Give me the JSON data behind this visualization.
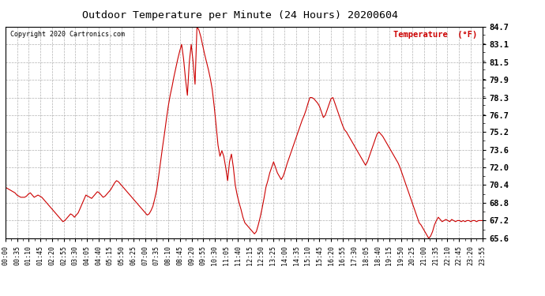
{
  "title": "Outdoor Temperature per Minute (24 Hours) 20200604",
  "copyright": "Copyright 2020 Cartronics.com",
  "legend_label": "Temperature  (°F)",
  "line_color": "#cc0000",
  "bg_color": "#ffffff",
  "grid_color": "#bbbbbb",
  "yticks": [
    65.6,
    67.2,
    68.8,
    70.4,
    72.0,
    73.6,
    75.2,
    76.7,
    78.3,
    79.9,
    81.5,
    83.1,
    84.7
  ],
  "ymin": 65.6,
  "ymax": 84.7,
  "xtick_labels": [
    "00:00",
    "00:35",
    "01:10",
    "01:45",
    "02:20",
    "02:55",
    "03:30",
    "04:05",
    "04:40",
    "05:15",
    "05:50",
    "06:25",
    "07:00",
    "07:35",
    "08:10",
    "08:45",
    "09:20",
    "09:55",
    "10:30",
    "11:05",
    "11:40",
    "12:15",
    "12:50",
    "13:25",
    "14:00",
    "14:35",
    "15:10",
    "15:45",
    "16:20",
    "16:55",
    "17:30",
    "18:05",
    "18:40",
    "19:15",
    "19:50",
    "20:25",
    "21:00",
    "21:35",
    "22:10",
    "22:45",
    "23:20",
    "23:55"
  ],
  "temperature_data": [
    70.2,
    70.1,
    70.0,
    69.9,
    69.8,
    69.7,
    69.5,
    69.4,
    69.3,
    69.3,
    69.3,
    69.4,
    69.6,
    69.7,
    69.5,
    69.3,
    69.4,
    69.5,
    69.4,
    69.3,
    69.1,
    68.9,
    68.7,
    68.5,
    68.3,
    68.1,
    67.9,
    67.7,
    67.5,
    67.3,
    67.1,
    67.2,
    67.4,
    67.6,
    67.8,
    67.7,
    67.5,
    67.7,
    67.9,
    68.3,
    68.7,
    69.1,
    69.5,
    69.4,
    69.3,
    69.2,
    69.4,
    69.6,
    69.8,
    69.7,
    69.5,
    69.3,
    69.4,
    69.6,
    69.8,
    70.0,
    70.3,
    70.6,
    70.8,
    70.7,
    70.5,
    70.3,
    70.1,
    69.9,
    69.7,
    69.5,
    69.3,
    69.1,
    68.9,
    68.7,
    68.5,
    68.3,
    68.1,
    67.9,
    67.7,
    67.8,
    68.1,
    68.5,
    69.2,
    70.0,
    71.2,
    72.5,
    73.8,
    75.0,
    76.3,
    77.5,
    78.5,
    79.3,
    80.2,
    81.0,
    81.8,
    82.5,
    83.1,
    81.8,
    80.0,
    78.5,
    81.5,
    83.1,
    81.5,
    79.5,
    84.7,
    84.4,
    83.8,
    83.0,
    82.2,
    81.5,
    80.8,
    80.0,
    79.0,
    77.5,
    75.8,
    74.0,
    73.0,
    73.5,
    73.0,
    72.0,
    70.8,
    72.5,
    73.2,
    72.0,
    70.4,
    69.5,
    68.8,
    68.2,
    67.5,
    67.0,
    66.8,
    66.6,
    66.4,
    66.2,
    66.0,
    66.2,
    66.8,
    67.5,
    68.3,
    69.2,
    70.2,
    70.8,
    71.5,
    72.0,
    72.5,
    72.0,
    71.5,
    71.2,
    70.9,
    71.2,
    71.7,
    72.3,
    72.8,
    73.3,
    73.8,
    74.3,
    74.8,
    75.3,
    75.8,
    76.3,
    76.7,
    77.2,
    77.8,
    78.3,
    78.3,
    78.2,
    78.0,
    77.8,
    77.5,
    77.0,
    76.5,
    76.7,
    77.2,
    77.7,
    78.2,
    78.3,
    77.8,
    77.3,
    76.8,
    76.3,
    75.8,
    75.4,
    75.2,
    74.9,
    74.6,
    74.3,
    74.0,
    73.7,
    73.4,
    73.1,
    72.8,
    72.5,
    72.2,
    72.5,
    73.0,
    73.5,
    74.0,
    74.5,
    75.0,
    75.2,
    75.0,
    74.8,
    74.5,
    74.2,
    73.9,
    73.6,
    73.3,
    73.0,
    72.7,
    72.4,
    72.0,
    71.5,
    71.0,
    70.5,
    70.0,
    69.5,
    69.0,
    68.5,
    68.0,
    67.5,
    67.0,
    66.8,
    66.5,
    66.2,
    65.9,
    65.6,
    65.8,
    66.2,
    66.8,
    67.2,
    67.5,
    67.3,
    67.1,
    67.2,
    67.3,
    67.2,
    67.1,
    67.3,
    67.2,
    67.1,
    67.2,
    67.2,
    67.1,
    67.2,
    67.1,
    67.2,
    67.2,
    67.1,
    67.2,
    67.2,
    67.1,
    67.2,
    67.2,
    67.2
  ]
}
